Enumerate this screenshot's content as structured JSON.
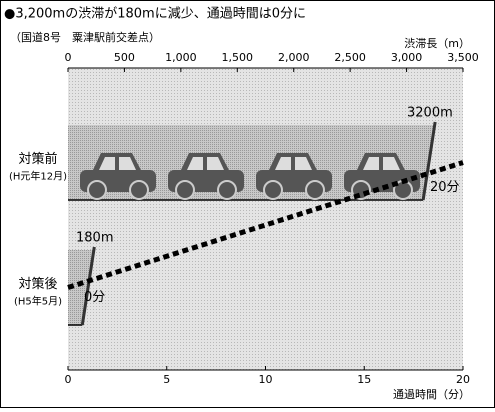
{
  "chart_data": {
    "type": "hbar",
    "title": "●3,200mの渋滞が180mに減少、通過時間は0分に",
    "subtitle": "（国道8号　粟津駅前交差点）",
    "categories": [
      "対策前",
      "対策後"
    ],
    "category_notes": [
      "(H元年12月)",
      "(H5年5月)"
    ],
    "length": {
      "values": [
        3200,
        180
      ],
      "value_labels": [
        "3200m",
        "180m"
      ]
    },
    "time": {
      "values": [
        20,
        0
      ],
      "value_labels": [
        "20分",
        "0分"
      ]
    },
    "xlabel": "渋滞長（m）",
    "xlim": [
      0,
      3500
    ],
    "xticks": [
      0,
      500,
      {
        "value": 1000,
        "label": "1,000"
      },
      {
        "value": 1500,
        "label": "1,500"
      },
      {
        "value": 2000,
        "label": "2,000"
      },
      {
        "value": 2500,
        "label": "2,500"
      },
      {
        "value": 3000,
        "label": "3,000"
      },
      {
        "value": 3500,
        "label": "3,500"
      }
    ],
    "x2label": "通過時間（分）",
    "x2lim": [
      0,
      20
    ],
    "x2ticks": [
      0,
      5,
      10,
      15,
      20
    ]
  }
}
